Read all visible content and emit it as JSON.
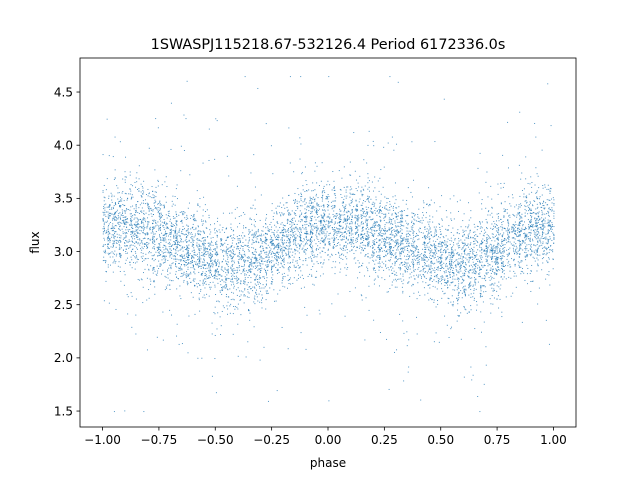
{
  "chart_data": {
    "type": "scatter",
    "title": "1SWASPJ115218.67-532126.4 Period 6172336.0s",
    "xlabel": "phase",
    "ylabel": "flux",
    "xlim": [
      -1.1,
      1.1
    ],
    "ylim": [
      1.35,
      4.82
    ],
    "xticks": [
      -1.0,
      -0.75,
      -0.5,
      -0.25,
      0.0,
      0.25,
      0.5,
      0.75,
      1.0
    ],
    "xtick_labels": [
      "−1.00",
      "−0.75",
      "−0.50",
      "−0.25",
      "0.00",
      "0.25",
      "0.50",
      "0.75",
      "1.00"
    ],
    "yticks": [
      1.5,
      2.0,
      2.5,
      3.0,
      3.5,
      4.0,
      4.5
    ],
    "ytick_labels": [
      "1.5",
      "2.0",
      "2.5",
      "3.0",
      "3.5",
      "4.0",
      "4.5"
    ],
    "grid": false,
    "legend": "none",
    "marker_color": "#1f77b4",
    "series": [
      {
        "phase_range": [
          -1.0,
          1.0
        ],
        "mean_flux_profile": {
          "phase": [
            -1.0,
            -0.9,
            -0.8,
            -0.7,
            -0.6,
            -0.5,
            -0.4,
            -0.3,
            -0.2,
            -0.1,
            0.0,
            0.1,
            0.2,
            0.3,
            0.4,
            0.5,
            0.6,
            0.7,
            0.8,
            0.9,
            1.0
          ],
          "flux": [
            3.25,
            3.25,
            3.2,
            3.1,
            3.02,
            2.9,
            2.88,
            2.95,
            3.1,
            3.2,
            3.25,
            3.25,
            3.2,
            3.1,
            3.02,
            2.9,
            2.88,
            2.95,
            3.1,
            3.2,
            3.25
          ]
        },
        "flux_min": 1.5,
        "flux_max": 4.65
      }
    ]
  }
}
